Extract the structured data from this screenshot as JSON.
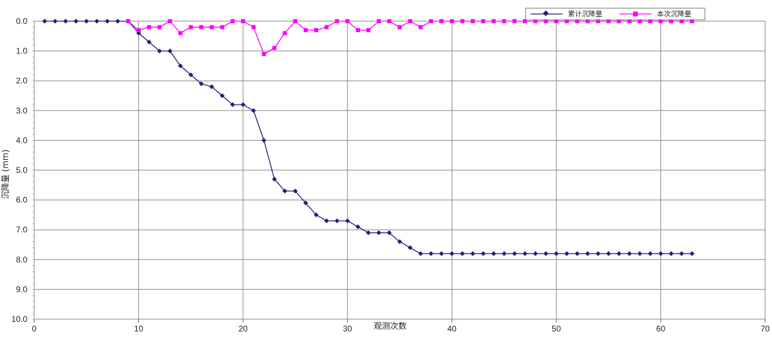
{
  "chart_data": {
    "type": "line",
    "title": "",
    "xlabel": "观测次数",
    "ylabel": "沉降量 (mm)",
    "xlim": [
      0,
      70
    ],
    "ylim": [
      0,
      10
    ],
    "y_inverted": true,
    "x_ticks": [
      0,
      10,
      20,
      30,
      40,
      50,
      60,
      70
    ],
    "y_ticks": [
      "0.0",
      "1.0",
      "2.0",
      "3.0",
      "4.0",
      "5.0",
      "6.0",
      "7.0",
      "8.0",
      "9.0",
      "10.0"
    ],
    "x_tick_labels": [
      "0",
      "10",
      "20",
      "30",
      "40",
      "50",
      "60",
      "70"
    ],
    "grid": true,
    "legend_position": "top-right",
    "series": [
      {
        "name": "累计沉降量",
        "color": "#1f1f7a",
        "marker": "diamond",
        "x": [
          1,
          2,
          3,
          4,
          5,
          6,
          7,
          8,
          9,
          10,
          11,
          12,
          13,
          14,
          15,
          16,
          17,
          18,
          19,
          20,
          21,
          22,
          23,
          24,
          25,
          26,
          27,
          28,
          29,
          30,
          31,
          32,
          33,
          34,
          35,
          36,
          37,
          38,
          39,
          40,
          41,
          42,
          43,
          44,
          45,
          46,
          47,
          48,
          49,
          50,
          51,
          52,
          53,
          54,
          55,
          56,
          57,
          58,
          59,
          60,
          61,
          62,
          63
        ],
        "values": [
          0,
          0,
          0,
          0,
          0,
          0,
          0,
          0,
          0,
          0.4,
          0.7,
          1.0,
          1.0,
          1.5,
          1.8,
          2.1,
          2.2,
          2.5,
          2.8,
          2.8,
          3.0,
          4.0,
          5.3,
          5.7,
          5.7,
          6.1,
          6.5,
          6.7,
          6.7,
          6.7,
          6.9,
          7.1,
          7.1,
          7.1,
          7.4,
          7.6,
          7.8,
          7.8,
          7.8,
          7.8,
          7.8,
          7.8,
          7.8,
          7.8,
          7.8,
          7.8,
          7.8,
          7.8,
          7.8,
          7.8,
          7.8,
          7.8,
          7.8,
          7.8,
          7.8,
          7.8,
          7.8,
          7.8,
          7.8,
          7.8,
          7.8,
          7.8,
          7.8
        ]
      },
      {
        "name": "本次沉降量",
        "color": "#ff00ff",
        "marker": "square",
        "x": [
          9,
          10,
          11,
          12,
          13,
          14,
          15,
          16,
          17,
          18,
          19,
          20,
          21,
          22,
          23,
          24,
          25,
          26,
          27,
          28,
          29,
          30,
          31,
          32,
          33,
          34,
          35,
          36,
          37,
          38,
          39,
          40,
          41,
          42,
          43,
          44,
          45,
          46,
          47,
          48,
          49,
          50,
          51,
          52,
          53,
          54,
          55,
          56,
          57,
          58,
          59,
          60,
          61,
          62,
          63
        ],
        "values": [
          0,
          0.3,
          0.2,
          0.2,
          0,
          0.4,
          0.2,
          0.2,
          0.2,
          0.2,
          0,
          0,
          0.2,
          1.1,
          0.9,
          0.4,
          0,
          0.3,
          0.3,
          0.2,
          0,
          0,
          0.3,
          0.3,
          0,
          0,
          0.2,
          0,
          0.2,
          0,
          0,
          0,
          0,
          0,
          0,
          0,
          0,
          0,
          0,
          0,
          0,
          0,
          0,
          0,
          0,
          0,
          0,
          0,
          0,
          0,
          0,
          0,
          0,
          0,
          0
        ]
      }
    ]
  }
}
